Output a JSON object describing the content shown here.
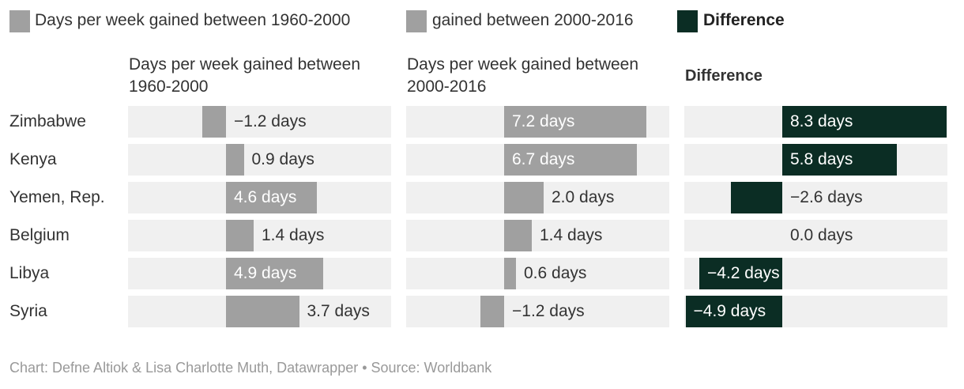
{
  "chart_data": {
    "type": "bar",
    "categories": [
      "Zimbabwe",
      "Kenya",
      "Yemen, Rep.",
      "Belgium",
      "Libya",
      "Syria"
    ],
    "column_headers": [
      "Days per week gained between 1960-2000",
      "Days per week gained between 2000-2016",
      "Difference"
    ],
    "series": [
      {
        "name": "Days per week gained between 1960-2000",
        "color": "#a0a0a0",
        "values": [
          -1.2,
          0.9,
          4.6,
          1.4,
          4.9,
          3.7
        ],
        "value_labels": [
          "−1.2 days",
          "0.9 days",
          "4.6 days",
          "1.4 days",
          "4.9 days",
          "3.7 days"
        ]
      },
      {
        "name": "gained between 2000-2016",
        "color": "#a0a0a0",
        "values": [
          7.2,
          6.7,
          2.0,
          1.4,
          0.6,
          -1.2
        ],
        "value_labels": [
          "7.2 days",
          "6.7 days",
          "2.0 days",
          "1.4 days",
          "0.6 days",
          "−1.2 days"
        ]
      },
      {
        "name": "Difference",
        "color": "#0b2d24",
        "values": [
          8.3,
          5.8,
          -2.6,
          0.0,
          -4.2,
          -4.9
        ],
        "value_labels": [
          "8.3 days",
          "5.8 days",
          "−2.6 days",
          "0.0 days",
          "−4.2 days",
          "−4.9 days"
        ]
      }
    ],
    "xlim": [
      -4.96,
      8.36
    ],
    "footer": "Chart: Defne Altiok & Lisa Charlotte Muth, Datawrapper • Source: Worldbank"
  }
}
